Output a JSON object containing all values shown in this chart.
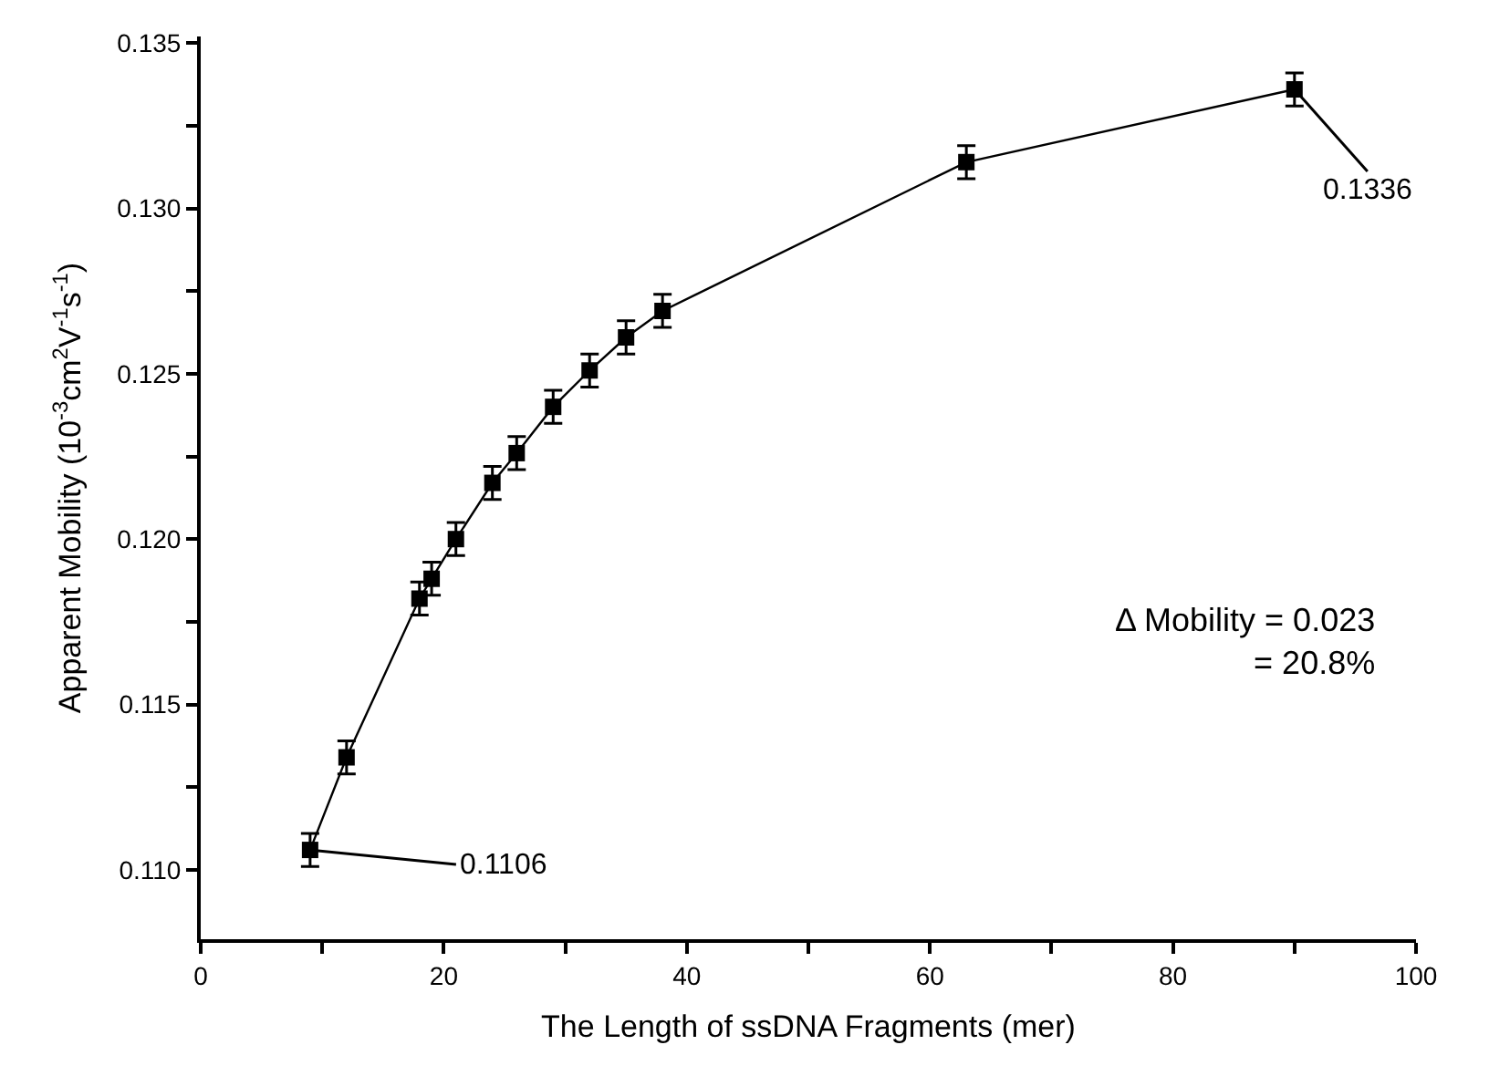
{
  "chart_data": {
    "type": "line",
    "xlabel": "The Length of ssDNA Fragments (mer)",
    "ylabel": "Apparent Mobility (10$^{-3}$cm$^{2}$V$^{-1}$s$^{-1}$)",
    "x": [
      9,
      12,
      18,
      19,
      21,
      24,
      26,
      29,
      32,
      35,
      38,
      63,
      90
    ],
    "series": [
      {
        "color": "#000000",
        "values": [
          0.1106,
          0.1134,
          0.1182,
          0.1188,
          0.12,
          0.1217,
          0.1226,
          0.124,
          0.1251,
          0.1261,
          0.1269,
          0.1314,
          0.1336
        ],
        "errors": [
          0.0005,
          0.0005,
          0.0005,
          0.0005,
          0.0005,
          0.0005,
          0.0005,
          0.0005,
          0.0005,
          0.0005,
          0.0005,
          0.0005,
          0.0005
        ]
      }
    ],
    "xlim": [
      0,
      100
    ],
    "xticks": [
      0,
      {
        "value": 10,
        "label": null
      },
      20,
      {
        "value": 30,
        "label": null
      },
      40,
      {
        "value": 50,
        "label": null
      },
      60,
      {
        "value": 70,
        "label": null
      },
      80,
      {
        "value": 90,
        "label": null
      },
      100
    ],
    "ylim": [
      0.1079,
      0.1352
    ],
    "yticks": [
      {
        "value": 0.11,
        "label": "0.110"
      },
      {
        "value": 0.1125,
        "label": null
      },
      0.115,
      {
        "value": 0.1175,
        "label": null
      },
      {
        "value": 0.12,
        "label": "0.120"
      },
      {
        "value": 0.1225,
        "label": null
      },
      0.125,
      {
        "value": 0.1275,
        "label": null
      },
      {
        "value": 0.13,
        "label": "0.130"
      },
      {
        "value": 0.1325,
        "label": null
      },
      0.135
    ],
    "annotations": [
      {
        "text": "0.1106",
        "x": 9,
        "y": 0.1106
      },
      {
        "text": "0.1336",
        "x": 90,
        "y": 0.1336
      },
      "Δ Mobility = 0.023\n= 20.8%"
    ],
    "marker": "square",
    "line_style": "solid"
  }
}
